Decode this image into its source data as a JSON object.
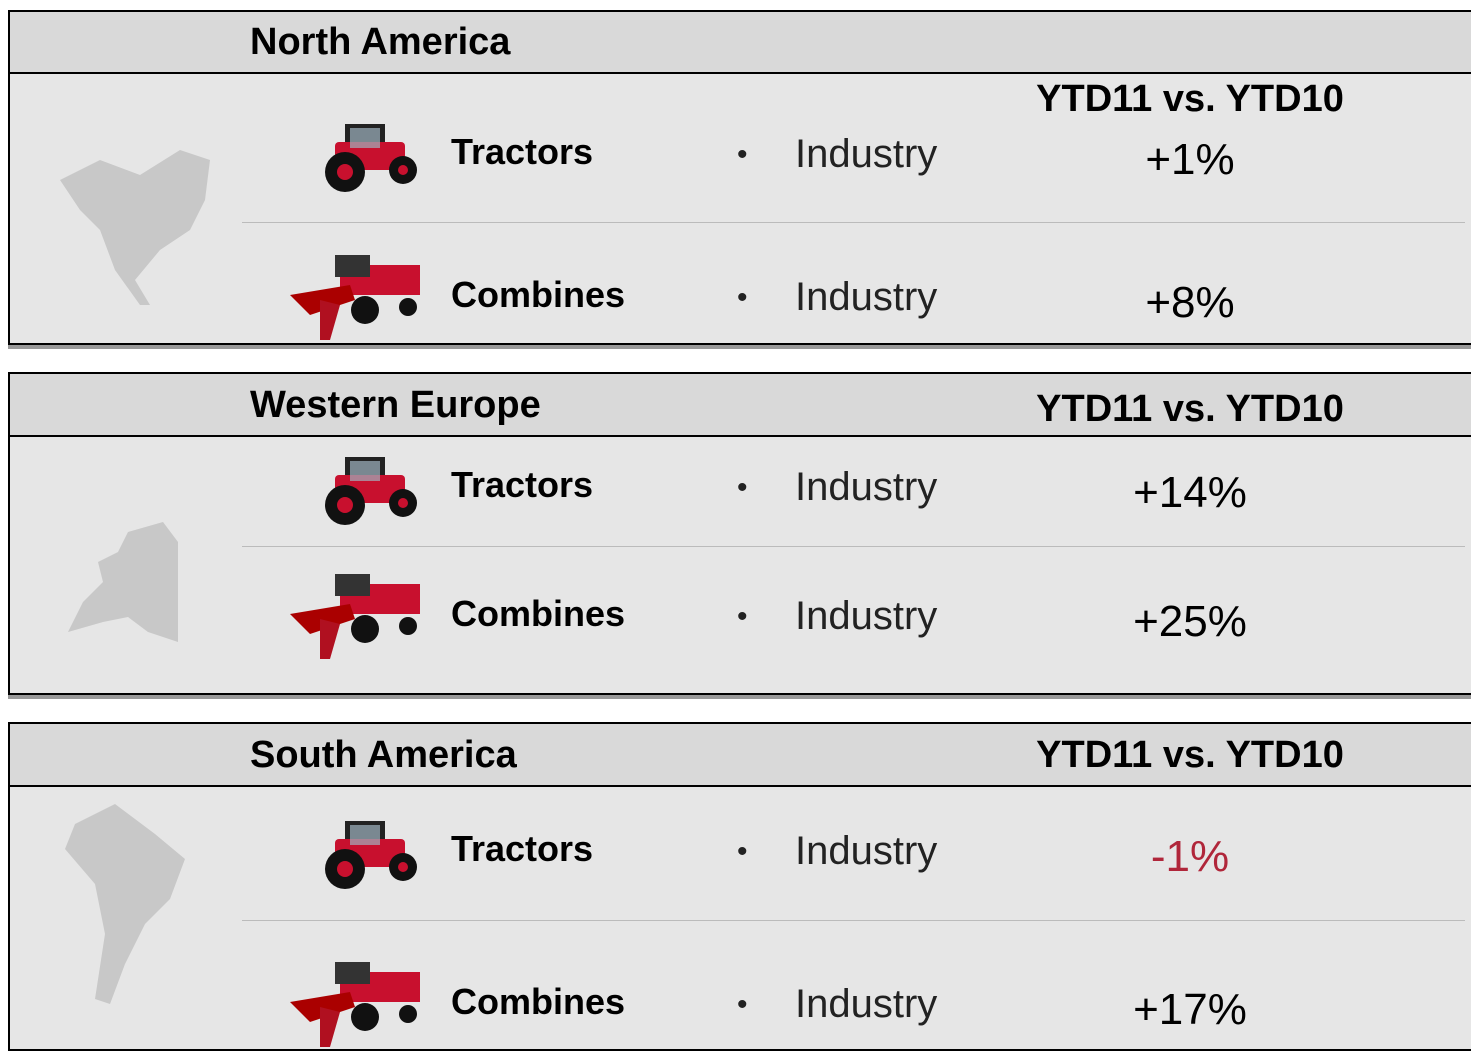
{
  "panels": [
    {
      "region": "North America",
      "column_header": "YTD11 vs. YTD10",
      "rows": [
        {
          "product": "Tractors",
          "item": "Industry",
          "value": "+1%",
          "color": "#000000"
        },
        {
          "product": "Combines",
          "item": "Industry",
          "value": "+8%",
          "color": "#000000"
        }
      ]
    },
    {
      "region": "Western Europe",
      "column_header": "YTD11 vs. YTD10",
      "rows": [
        {
          "product": "Tractors",
          "item": "Industry",
          "value": "+14%",
          "color": "#000000"
        },
        {
          "product": "Combines",
          "item": "Industry",
          "value": "+25%",
          "color": "#000000"
        }
      ]
    },
    {
      "region": "South America",
      "column_header": "YTD11 vs. YTD10",
      "rows": [
        {
          "product": "Tractors",
          "item": "Industry",
          "value": "-1%",
          "color": "#b0263a"
        },
        {
          "product": "Combines",
          "item": "Industry",
          "value": "+17%",
          "color": "#000000"
        }
      ]
    }
  ]
}
